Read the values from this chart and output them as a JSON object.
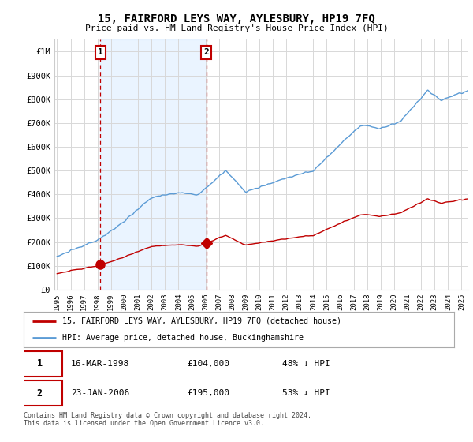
{
  "title": "15, FAIRFORD LEYS WAY, AYLESBURY, HP19 7FQ",
  "subtitle": "Price paid vs. HM Land Registry's House Price Index (HPI)",
  "ylabel_ticks": [
    "£0",
    "£100K",
    "£200K",
    "£300K",
    "£400K",
    "£500K",
    "£600K",
    "£700K",
    "£800K",
    "£900K",
    "£1M"
  ],
  "ytick_values": [
    0,
    100000,
    200000,
    300000,
    400000,
    500000,
    600000,
    700000,
    800000,
    900000,
    1000000
  ],
  "ylim": [
    0,
    1050000
  ],
  "xlim_start": 1994.8,
  "xlim_end": 2025.5,
  "xtick_labels": [
    "1995",
    "1996",
    "1997",
    "1998",
    "1999",
    "2000",
    "2001",
    "2002",
    "2003",
    "2004",
    "2005",
    "2006",
    "2007",
    "2008",
    "2009",
    "2010",
    "2011",
    "2012",
    "2013",
    "2014",
    "2015",
    "2016",
    "2017",
    "2018",
    "2019",
    "2020",
    "2021",
    "2022",
    "2023",
    "2024",
    "2025"
  ],
  "xtick_values": [
    1995,
    1996,
    1997,
    1998,
    1999,
    2000,
    2001,
    2002,
    2003,
    2004,
    2005,
    2006,
    2007,
    2008,
    2009,
    2010,
    2011,
    2012,
    2013,
    2014,
    2015,
    2016,
    2017,
    2018,
    2019,
    2020,
    2021,
    2022,
    2023,
    2024,
    2025
  ],
  "hpi_color": "#5b9bd5",
  "red_color": "#c00000",
  "shade_color": "#ddeeff",
  "point1_x": 1998.21,
  "point1_y": 104000,
  "point2_x": 2006.07,
  "point2_y": 195000,
  "point1_label": "1",
  "point2_label": "2",
  "point1_date": "16-MAR-1998",
  "point1_price": "£104,000",
  "point1_hpi": "48% ↓ HPI",
  "point2_date": "23-JAN-2006",
  "point2_price": "£195,000",
  "point2_hpi": "53% ↓ HPI",
  "legend_label_red": "15, FAIRFORD LEYS WAY, AYLESBURY, HP19 7FQ (detached house)",
  "legend_label_blue": "HPI: Average price, detached house, Buckinghamshire",
  "footer": "Contains HM Land Registry data © Crown copyright and database right 2024.\nThis data is licensed under the Open Government Licence v3.0.",
  "background_color": "#ffffff",
  "grid_color": "#d8d8d8"
}
